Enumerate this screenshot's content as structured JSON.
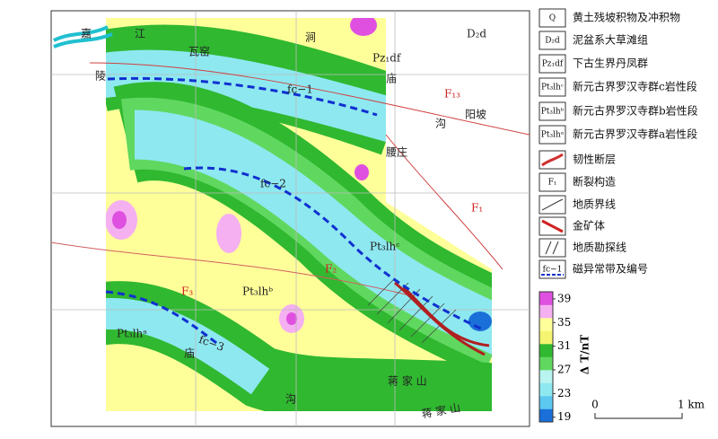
{
  "map": {
    "labels": [
      "嘉",
      "江",
      "瓦窑",
      "涧",
      "D₂d",
      "Pz₁df",
      "陵",
      "庙",
      "F₁₃",
      "阳坡",
      "沟",
      "fc−1",
      "腰庄",
      "fc−2",
      "F₁",
      "Pt₃lhᶜ",
      "F₂",
      "F₃",
      "Pt₃lhᵇ",
      "Pt₃lhᵃ",
      "fc−3",
      "庙",
      "沟",
      "蒋 家 山",
      "蒋 家 山"
    ],
    "legend": [
      {
        "symbol": "Q",
        "text": "黄土残坡积物及冲积物"
      },
      {
        "symbol": "D₂d",
        "text": "泥盆系大草滩组"
      },
      {
        "symbol": "Pz₁df",
        "text": "下古生界丹凤群"
      },
      {
        "symbol": "Pt₃lhᶜ",
        "text": "新元古界罗汉寺群c岩性段"
      },
      {
        "symbol": "Pt₃lhᵇ",
        "text": "新元古界罗汉寺群b岩性段"
      },
      {
        "symbol": "Pt₃lhᵃ",
        "text": "新元古界罗汉寺群a岩性段"
      },
      {
        "text": "韧性断层"
      },
      {
        "symbol": "F₁",
        "text": "断裂构造"
      },
      {
        "text": "地质界线"
      },
      {
        "text": "金矿体"
      },
      {
        "text": "地质勘探线"
      },
      {
        "symbol": "fc−1",
        "text": "磁异常带及编号"
      }
    ],
    "colorbar": {
      "label": "Δ T/nT",
      "lim": [
        18.2,
        40.2
      ],
      "ticks": [
        39,
        35,
        31,
        27,
        23,
        19
      ],
      "colors": [
        "#1a6fd8",
        "#5cc8f0",
        "#8ee8f0",
        "#b8f4f0",
        "#60d860",
        "#30b830",
        "#f4f470",
        "#ffff9a",
        "#f4b0f0",
        "#e050e0"
      ]
    },
    "scale": {
      "start": "0",
      "end": "1 km"
    }
  }
}
